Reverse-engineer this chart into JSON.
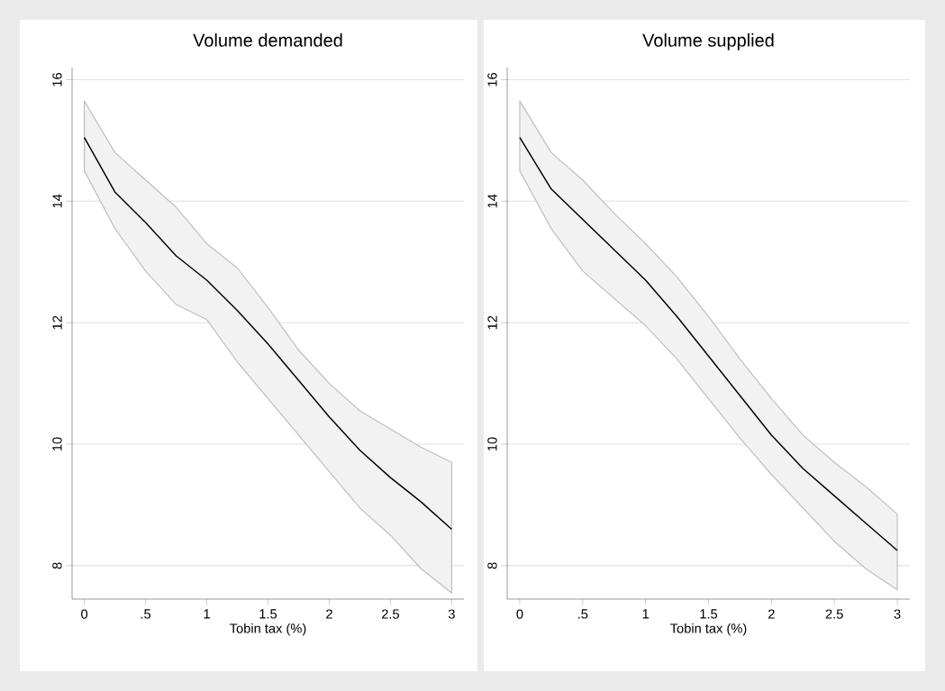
{
  "chart_data": [
    {
      "type": "line",
      "title": "Volume demanded",
      "xlabel": "Tobin tax (%)",
      "x": [
        0,
        0.25,
        0.5,
        0.75,
        1,
        1.25,
        1.5,
        1.75,
        2,
        2.25,
        2.5,
        2.75,
        3
      ],
      "series": [
        {
          "color": "#000000",
          "values": [
            15.05,
            14.15,
            13.65,
            13.1,
            12.7,
            12.2,
            11.65,
            11.05,
            10.45,
            9.9,
            9.45,
            9.05,
            8.6
          ],
          "lower": [
            14.5,
            13.55,
            12.85,
            12.3,
            12.05,
            11.35,
            10.75,
            10.15,
            9.55,
            8.95,
            8.5,
            7.95,
            7.55
          ],
          "upper": [
            15.65,
            14.8,
            14.35,
            13.9,
            13.3,
            12.9,
            12.25,
            11.55,
            11.0,
            10.55,
            10.25,
            9.95,
            9.7
          ]
        }
      ],
      "xlim": [
        -0.1,
        3.1
      ],
      "ylim": [
        7.45,
        16.2
      ],
      "xticks": [
        0,
        {
          "value": 0.5,
          "label": ".5"
        },
        1,
        1.5,
        2,
        2.5,
        3
      ],
      "yticks": [
        8,
        10,
        12,
        14,
        16
      ],
      "grid": "y"
    },
    {
      "type": "line",
      "title": "Volume supplied",
      "xlabel": "Tobin tax (%)",
      "x": [
        0,
        0.25,
        0.5,
        0.75,
        1,
        1.25,
        1.5,
        1.75,
        2,
        2.25,
        2.5,
        2.75,
        3
      ],
      "series": [
        {
          "color": "#000000",
          "values": [
            15.05,
            14.2,
            13.7,
            13.2,
            12.7,
            12.1,
            11.45,
            10.8,
            10.15,
            9.6,
            9.15,
            8.7,
            8.25
          ],
          "lower": [
            14.5,
            13.55,
            12.85,
            12.4,
            11.95,
            11.4,
            10.75,
            10.1,
            9.5,
            8.95,
            8.4,
            7.95,
            7.6
          ],
          "upper": [
            15.65,
            14.8,
            14.35,
            13.8,
            13.3,
            12.75,
            12.1,
            11.4,
            10.75,
            10.15,
            9.7,
            9.3,
            8.85
          ]
        }
      ],
      "xlim": [
        -0.1,
        3.1
      ],
      "ylim": [
        7.45,
        16.2
      ],
      "xticks": [
        0,
        {
          "value": 0.5,
          "label": ".5"
        },
        1,
        1.5,
        2,
        2.5,
        3
      ],
      "yticks": [
        8,
        10,
        12,
        14,
        16
      ],
      "grid": "y"
    }
  ]
}
